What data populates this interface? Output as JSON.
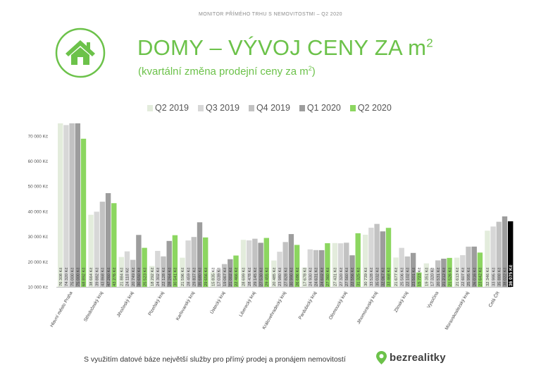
{
  "header": {
    "caption": "MONITOR PŘÍMÉHO TRHU S NEMOVITOSTMI – Q2 2020",
    "title": "DOMY – VÝVOJ CENY ZA m",
    "title_sup": "2",
    "subtitle": "(kvartální změna prodejní ceny za m",
    "subtitle_sup": "2",
    "subtitle_end": ")",
    "icon": "house-icon"
  },
  "colors": {
    "green": "#6cc24a",
    "total_q2_2020": "#000000",
    "series": [
      "#e3ecdc",
      "#d7d7d7",
      "#c2c2c2",
      "#9d9d9d",
      "#8cd660"
    ]
  },
  "chart_data": {
    "type": "bar",
    "title": "",
    "xlabel": "",
    "ylabel": "",
    "ylim": [
      10000,
      75000
    ],
    "y_ticks": [
      "10 000 Kč",
      "20 000 Kč",
      "30 000 Kč",
      "40 000 Kč",
      "50 000 Kč",
      "60 000 Kč",
      "70 000 Kč"
    ],
    "y_tick_values": [
      10000,
      20000,
      30000,
      40000,
      50000,
      60000,
      70000
    ],
    "legend_position": "top",
    "grid": false,
    "categories": [
      "Hlavní město Praha",
      "Středočeský kraj",
      "Jihočeský kraj",
      "Plzeňský kraj",
      "Karlovarský kraj",
      "Ústecký kraj",
      "Liberecký kraj",
      "Královehradecký kraj",
      "Pardubický kraj",
      "Olomoucký kraj",
      "Jihomoravský kraj",
      "Zlínský kraj",
      "Vysočina",
      "Moravskoslezský kraj",
      "Celá ČR"
    ],
    "series": [
      {
        "name": "Q2 2019",
        "values": [
          76308,
          38664,
          21884,
          18292,
          21596,
          15835,
          28699,
          20485,
          17678,
          27431,
          30739,
          21677,
          19351,
          21613,
          32346
        ],
        "labels": [
          "76 308 Kč",
          "38 664 Kč",
          "21 884 Kč",
          "18 292 Kč",
          "21 596 Kč",
          "15 835 Kč",
          "28 699 Kč",
          "20 485 Kč",
          "17 678 Kč",
          "27 431 Kč",
          "30 739 Kč",
          "21 677 Kč",
          "19 351 Kč",
          "21 613 Kč",
          "32 346 Kč"
        ]
      },
      {
        "name": "Q3 2019",
        "values": [
          74320,
          39882,
          24110,
          24302,
          28459,
          17039,
          28478,
          23980,
          24930,
          27320,
          33528,
          25506,
          17320,
          22607,
          33995
        ],
        "labels": [
          "74 320 Kč",
          "39 882 Kč",
          "24 110 Kč",
          "24 302 Kč",
          "28 459 Kč",
          "17 039 Kč",
          "28 478 Kč",
          "23 980 Kč",
          "24 930 Kč",
          "27 320 Kč",
          "33 528 Kč",
          "25 506 Kč",
          "17 320 Kč",
          "22 607 Kč",
          "33 995 Kč"
        ]
      },
      {
        "name": "Q4 2019",
        "values": [
          75000,
          43868,
          20749,
          22128,
          29837,
          19067,
          29145,
          27828,
          24631,
          27560,
          35032,
          22102,
          20531,
          25995,
          35888
        ],
        "labels": [
          "75 000 Kč",
          "43 868 Kč",
          "20 749 Kč",
          "22 128 Kč",
          "29 837 Kč",
          "19 067 Kč",
          "29 145 Kč",
          "27 828 Kč",
          "24 631 Kč",
          "27 560 Kč",
          "35 032 Kč",
          "22 102 Kč",
          "20 531 Kč",
          "25 995 Kč",
          "35 888 Kč"
        ]
      },
      {
        "name": "Q1 2020",
        "values": [
          75000,
          47260,
          30650,
          28264,
          35680,
          21002,
          27530,
          30990,
          24602,
          22556,
          32067,
          23501,
          21212,
          26016,
          38022
        ],
        "labels": [
          "75 000 Kč",
          "47 260 Kč",
          "30 650 Kč",
          "28 264 Kč",
          "35 680 Kč",
          "21 002 Kč",
          "27 530 Kč",
          "30 990 Kč",
          "24 602 Kč",
          "22 556 Kč",
          "32 067 Kč",
          "23 501 Kč",
          "21 212 Kč",
          "26 016 Kč",
          "38 022 Kč"
        ]
      },
      {
        "name": "Q2 2020",
        "values": [
          68892,
          43276,
          25523,
          30541,
          29656,
          22466,
          29455,
          26686,
          27360,
          31325,
          33468,
          15723,
          21526,
          23642,
          36075
        ],
        "labels": [
          "68 892 Kč",
          "43 276 Kč",
          "25 523 Kč",
          "30 541 Kč",
          "29 656 Kč",
          "22 466 Kč",
          "29 455 Kč",
          "26 686 Kč",
          "27 360 Kč",
          "31 325 Kč",
          "33 468 Kč",
          "15 723 Kč",
          "21 526 Kč",
          "23 642 Kč",
          "36 075 Kč"
        ]
      }
    ]
  },
  "footer": {
    "text": "S využitím datové báze největší služby pro přímý prodej a pronájem nemovitostí",
    "brand": "bezrealitky",
    "brand_icon": "location-pin-icon"
  }
}
